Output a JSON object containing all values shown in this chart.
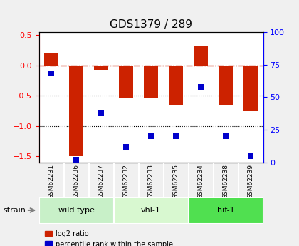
{
  "title": "GDS1379 / 289",
  "samples": [
    "GSM62231",
    "GSM62236",
    "GSM62237",
    "GSM62232",
    "GSM62233",
    "GSM62235",
    "GSM62234",
    "GSM62238",
    "GSM62239"
  ],
  "log2_ratio": [
    0.2,
    -1.5,
    -0.08,
    -0.55,
    -0.55,
    -0.65,
    0.32,
    -0.65,
    -0.75
  ],
  "percentile_rank": [
    68,
    2,
    38,
    12,
    20,
    20,
    58,
    20,
    5
  ],
  "groups": [
    {
      "label": "wild type",
      "start": 0,
      "end": 3,
      "color": "#c8f0c8"
    },
    {
      "label": "vhl-1",
      "start": 3,
      "end": 6,
      "color": "#d8f8d0"
    },
    {
      "label": "hif-1",
      "start": 6,
      "end": 9,
      "color": "#50e050"
    }
  ],
  "ylim_left": [
    -1.6,
    0.55
  ],
  "ylim_right": [
    0,
    100
  ],
  "bar_color": "#cc2200",
  "dot_color": "#0000cc",
  "hline_color": "#cc2200",
  "hline_style": "-.",
  "grid_color": "#000000",
  "bg_plot": "#ffffff",
  "bg_sample_row": "#cccccc",
  "bg_outer": "#f0f0f0"
}
